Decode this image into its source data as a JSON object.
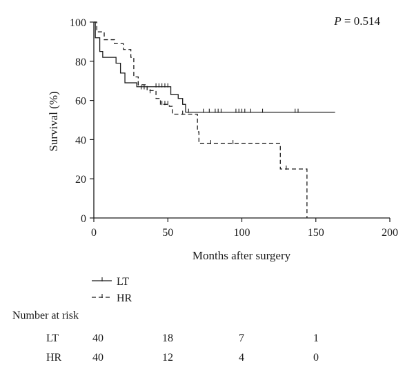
{
  "chart_data": {
    "type": "line",
    "subtype": "kaplan-meier",
    "xlabel": "Months after surgery",
    "ylabel": "Survival (%)",
    "xlim": [
      0,
      200
    ],
    "ylim": [
      0,
      100
    ],
    "xticks": [
      "0",
      "50",
      "100",
      "150",
      "200"
    ],
    "yticks": [
      "0",
      "20",
      "40",
      "60",
      "80",
      "100"
    ],
    "annotation": {
      "italic": "P",
      "text": " = 0.514"
    },
    "grid": false,
    "legend_position": "bottom-left",
    "series": [
      {
        "name": "LT",
        "style": "solid",
        "steps": [
          [
            0,
            100
          ],
          [
            1,
            92
          ],
          [
            4,
            85
          ],
          [
            6,
            82
          ],
          [
            15,
            79
          ],
          [
            18,
            74
          ],
          [
            21,
            69
          ],
          [
            29,
            67
          ],
          [
            52,
            63
          ],
          [
            57,
            61
          ],
          [
            60,
            58
          ],
          [
            62,
            54
          ],
          [
            163,
            54
          ]
        ],
        "censored": [
          [
            42,
            67
          ],
          [
            44,
            67
          ],
          [
            46,
            67
          ],
          [
            48,
            67
          ],
          [
            50,
            67
          ],
          [
            64,
            54
          ],
          [
            74,
            54
          ],
          [
            78,
            54
          ],
          [
            82,
            54
          ],
          [
            84,
            54
          ],
          [
            86,
            54
          ],
          [
            96,
            54
          ],
          [
            98,
            54
          ],
          [
            100,
            54
          ],
          [
            102,
            54
          ],
          [
            106,
            54
          ],
          [
            114,
            54
          ],
          [
            136,
            54
          ],
          [
            138,
            54
          ]
        ]
      },
      {
        "name": "HR",
        "style": "dashed",
        "steps": [
          [
            0,
            100
          ],
          [
            2,
            95
          ],
          [
            7,
            91
          ],
          [
            14,
            89
          ],
          [
            20,
            86
          ],
          [
            25,
            82
          ],
          [
            27,
            72
          ],
          [
            30,
            68
          ],
          [
            36,
            65
          ],
          [
            42,
            61
          ],
          [
            45,
            58
          ],
          [
            51,
            57
          ],
          [
            53,
            53
          ],
          [
            70,
            44
          ],
          [
            71,
            38
          ],
          [
            126,
            25
          ],
          [
            144,
            0
          ]
        ],
        "censored": [
          [
            30,
            68
          ],
          [
            32,
            66
          ],
          [
            34,
            66
          ],
          [
            38,
            64
          ],
          [
            46,
            58
          ],
          [
            48,
            58
          ],
          [
            50,
            58
          ],
          [
            60,
            53
          ],
          [
            79,
            38
          ],
          [
            94,
            38
          ],
          [
            130,
            25
          ]
        ]
      }
    ],
    "risk_table": {
      "title": "Number at risk",
      "rows": [
        {
          "label": "LT",
          "values": [
            "40",
            "18",
            "7",
            "1"
          ]
        },
        {
          "label": "HR",
          "values": [
            "40",
            "12",
            "4",
            "0"
          ]
        }
      ]
    }
  }
}
